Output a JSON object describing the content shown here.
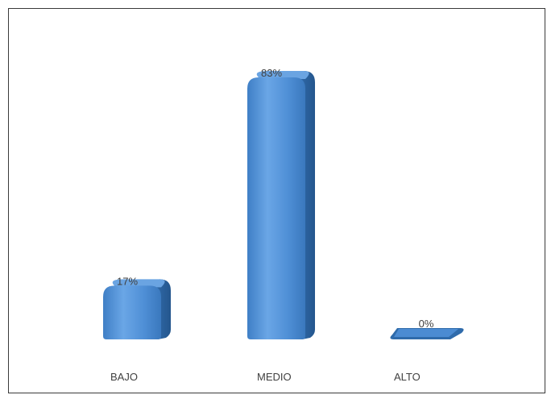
{
  "chart_data": {
    "type": "bar",
    "categories": [
      "BAJO",
      "MEDIO",
      "ALTO"
    ],
    "values": [
      17,
      83,
      0
    ],
    "data_labels": [
      "17%",
      "83%",
      "0%"
    ],
    "ylim": [
      0,
      83
    ],
    "grid": false,
    "bar_style": "3d-rounded",
    "colors": {
      "bar_front": "#4f8fd6",
      "bar_light": "#82b6ee",
      "bar_side": "#2f6bab",
      "bar_top": "#6aa4e2",
      "text": "#404040",
      "border": "#3a3a3a"
    }
  }
}
